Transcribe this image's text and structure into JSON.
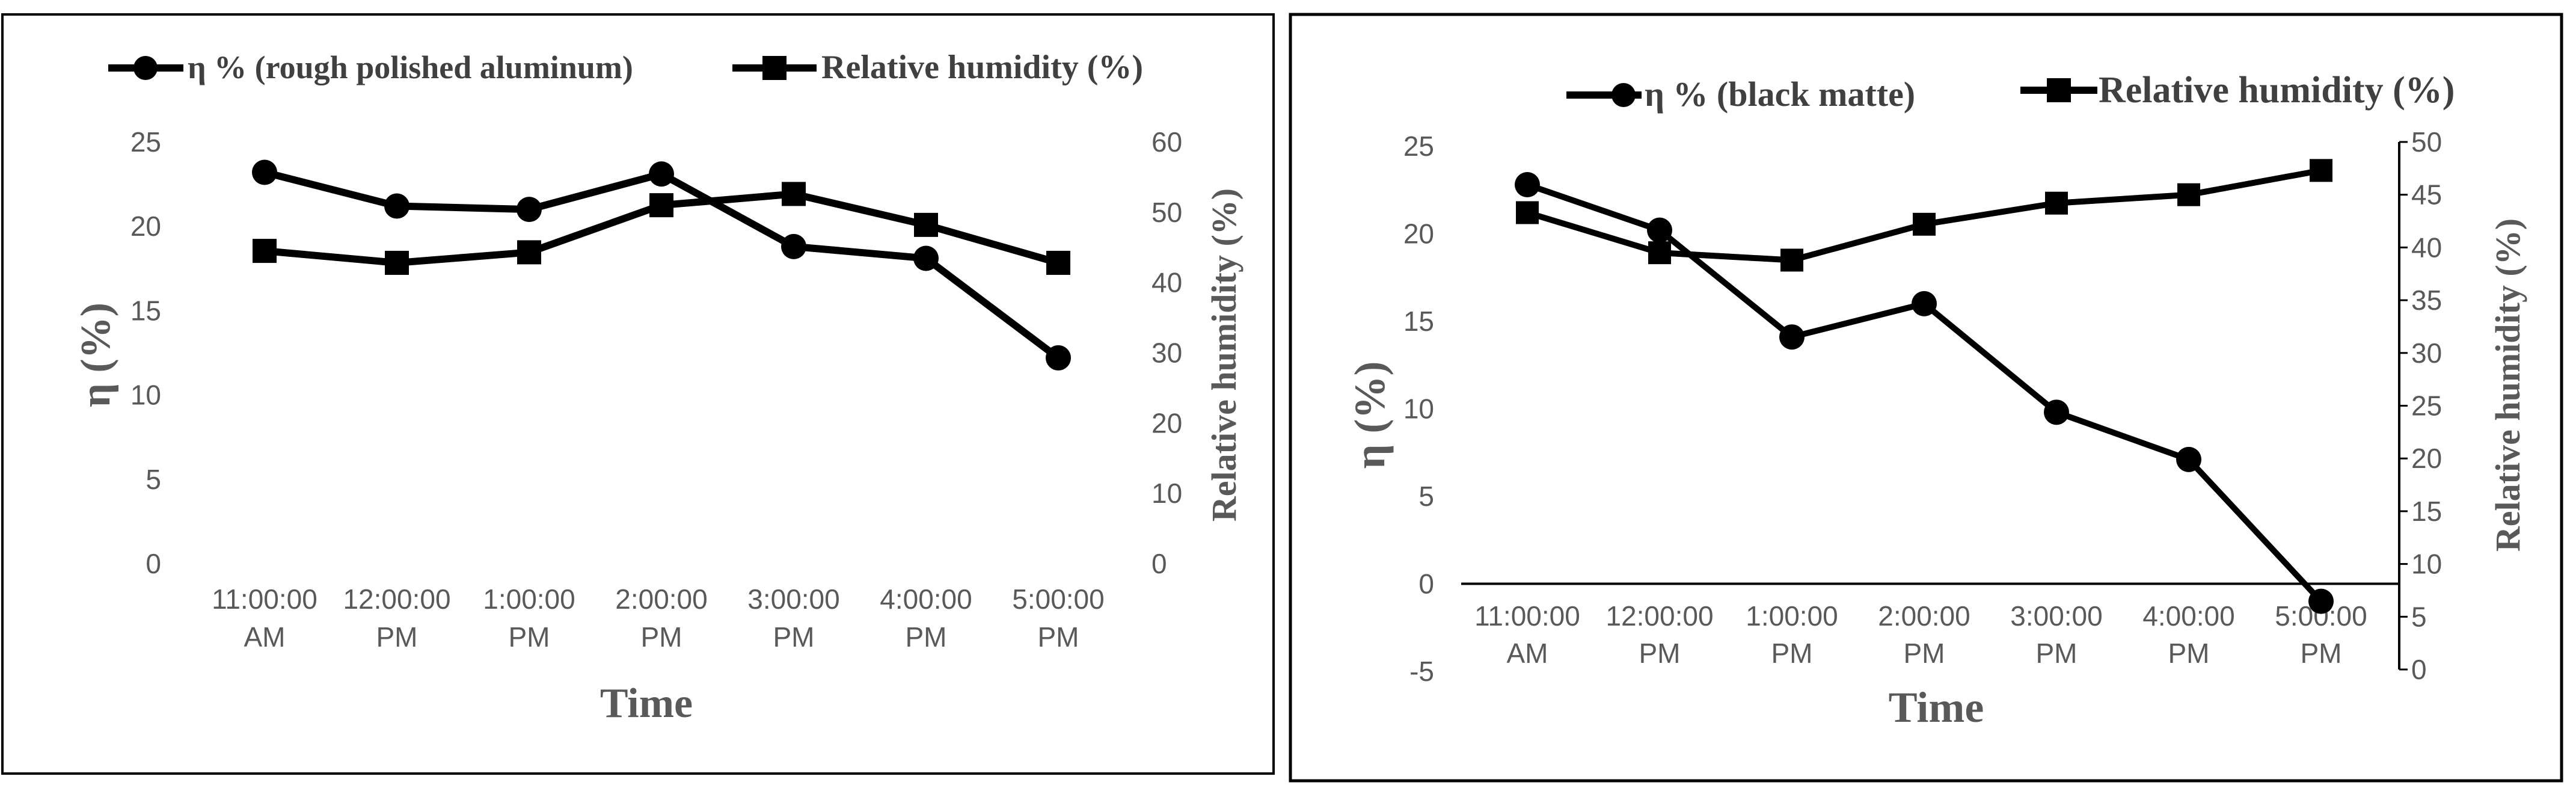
{
  "chart_data": [
    {
      "type": "line",
      "categories": [
        "11:00:00 AM",
        "12:00:00 PM",
        "1:00:00 PM",
        "2:00:00 PM",
        "3:00:00 PM",
        "4:00:00 PM",
        "5:00:00 PM"
      ],
      "xlabel": "Time",
      "ylabel": "η (%)",
      "ylabel_right": "Relative humidity (%)",
      "ylim": [
        0,
        25
      ],
      "yticks": [
        0,
        5,
        10,
        15,
        20,
        25
      ],
      "ylim_right": [
        0,
        60
      ],
      "yticks_right": [
        0,
        10,
        20,
        30,
        40,
        50,
        60
      ],
      "legend_position": "top",
      "series": [
        {
          "name": "η % (rough polished aluminum)",
          "axis": "left",
          "marker": "circle",
          "color": "#000000",
          "values": [
            23.2,
            21.2,
            21.0,
            23.1,
            18.8,
            18.1,
            12.2
          ]
        },
        {
          "name": "Relative humidity (%)",
          "axis": "right",
          "marker": "square",
          "color": "#000000",
          "values": [
            44.5,
            42.8,
            44.3,
            51.0,
            52.6,
            48.2,
            42.8
          ]
        }
      ]
    },
    {
      "type": "line",
      "categories": [
        "11:00:00 AM",
        "12:00:00 PM",
        "1:00:00 PM",
        "2:00:00 PM",
        "3:00:00 PM",
        "4:00:00 PM",
        "5:00:00 PM"
      ],
      "xlabel": "Time",
      "ylabel": "η (%)",
      "ylabel_right": "Relative humidity (%)",
      "ylim": [
        -5,
        25
      ],
      "yticks": [
        -5,
        0,
        5,
        10,
        15,
        20,
        25
      ],
      "ylim_right": [
        0,
        50
      ],
      "yticks_right": [
        0,
        5,
        10,
        15,
        20,
        25,
        30,
        35,
        40,
        45,
        50
      ],
      "legend_position": "top",
      "series": [
        {
          "name": "η % (black matte)",
          "axis": "left",
          "marker": "circle",
          "color": "#000000",
          "values": [
            22.8,
            20.2,
            14.1,
            16.0,
            9.8,
            7.1,
            -1.0
          ]
        },
        {
          "name": "Relative humidity (%)",
          "axis": "right",
          "marker": "square",
          "color": "#000000",
          "values": [
            43.3,
            39.5,
            38.8,
            42.2,
            44.2,
            45.0,
            47.3
          ]
        }
      ]
    }
  ]
}
